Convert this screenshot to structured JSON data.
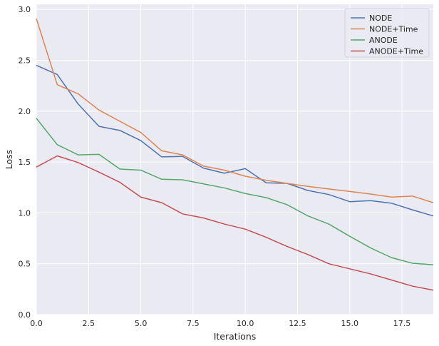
{
  "chart_data": {
    "type": "line",
    "title": "",
    "xlabel": "Iterations",
    "ylabel": "Loss",
    "xlim": [
      0,
      19
    ],
    "ylim": [
      0,
      3.05
    ],
    "xticks": [
      0.0,
      2.5,
      5.0,
      7.5,
      10.0,
      12.5,
      15.0,
      17.5
    ],
    "xtick_labels": [
      "0.0",
      "2.5",
      "5.0",
      "7.5",
      "10.0",
      "12.5",
      "15.0",
      "17.5"
    ],
    "yticks": [
      0.0,
      0.5,
      1.0,
      1.5,
      2.0,
      2.5,
      3.0
    ],
    "ytick_labels": [
      "0.0",
      "0.5",
      "1.0",
      "1.5",
      "2.0",
      "2.5",
      "3.0"
    ],
    "grid": true,
    "legend_position": "top-right",
    "x": [
      0,
      1,
      2,
      3,
      4,
      5,
      6,
      7,
      8,
      9,
      10,
      11,
      12,
      13,
      14,
      15,
      16,
      17,
      18,
      19
    ],
    "series": [
      {
        "name": "NODE",
        "color": "#4c72b0",
        "values": [
          2.45,
          2.36,
          2.07,
          1.85,
          1.81,
          1.71,
          1.55,
          1.555,
          1.44,
          1.39,
          1.435,
          1.295,
          1.29,
          1.22,
          1.18,
          1.11,
          1.12,
          1.095,
          1.03,
          0.97
        ]
      },
      {
        "name": "NODE+Time",
        "color": "#dd8452",
        "values": [
          2.91,
          2.26,
          2.17,
          2.01,
          1.9,
          1.79,
          1.61,
          1.57,
          1.46,
          1.42,
          1.36,
          1.32,
          1.29,
          1.26,
          1.235,
          1.21,
          1.185,
          1.155,
          1.165,
          1.1
        ]
      },
      {
        "name": "ANODE",
        "color": "#55a868",
        "values": [
          1.93,
          1.67,
          1.57,
          1.575,
          1.43,
          1.42,
          1.33,
          1.325,
          1.285,
          1.245,
          1.19,
          1.15,
          1.08,
          0.97,
          0.89,
          0.77,
          0.655,
          0.56,
          0.505,
          0.49
        ]
      },
      {
        "name": "ANODE+Time",
        "color": "#c44e52",
        "values": [
          1.45,
          1.56,
          1.495,
          1.4,
          1.3,
          1.155,
          1.1,
          0.99,
          0.95,
          0.89,
          0.84,
          0.76,
          0.67,
          0.59,
          0.5,
          0.45,
          0.4,
          0.34,
          0.28,
          0.24
        ]
      }
    ],
    "colors": {
      "background": "#eaeaf2",
      "grid": "#ffffff",
      "text": "#262626"
    }
  }
}
